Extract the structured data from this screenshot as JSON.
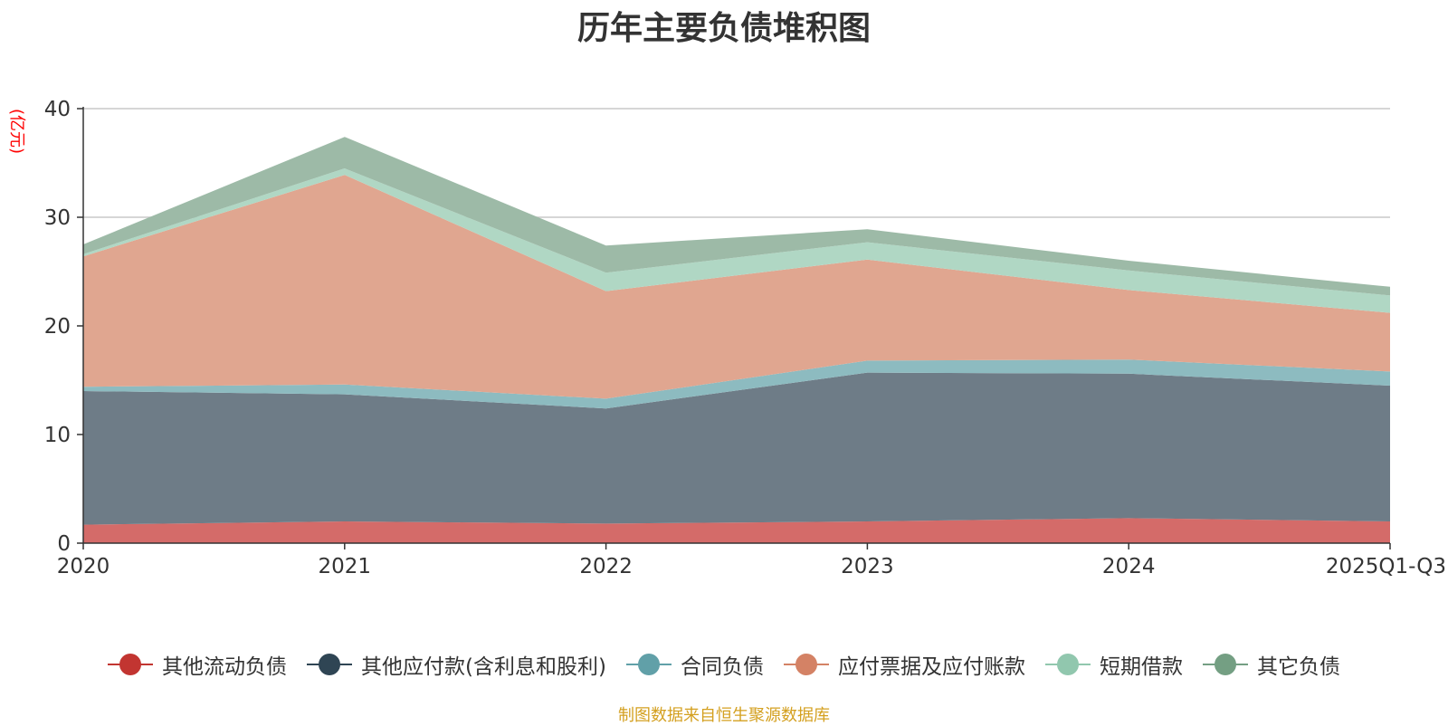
{
  "chart_data": {
    "type": "area",
    "stacked": true,
    "title": "历年主要负债堆积图",
    "unit_label": "(亿元)",
    "categories": [
      "2020",
      "2021",
      "2022",
      "2023",
      "2024",
      "2025Q1-Q3"
    ],
    "ylim": [
      0,
      40
    ],
    "yticks": [
      0,
      10,
      20,
      30,
      40
    ],
    "grid": true,
    "legend_position": "bottom",
    "source": "制图数据来自恒生聚源数据库",
    "series": [
      {
        "name": "其他流动负债",
        "color": "#c23531",
        "fill": "#d46b69",
        "values": [
          1.7,
          2.0,
          1.8,
          2.0,
          2.3,
          2.0
        ]
      },
      {
        "name": "其他应付款(含利息和股利)",
        "color": "#2f4554",
        "fill": "#6e7c87",
        "values": [
          12.3,
          11.7,
          10.6,
          13.7,
          13.3,
          12.5
        ]
      },
      {
        "name": "合同负债",
        "color": "#61a0a8",
        "fill": "#8dbbc0",
        "values": [
          0.4,
          0.9,
          0.9,
          1.1,
          1.3,
          1.3
        ]
      },
      {
        "name": "应付票据及应付账款",
        "color": "#d48265",
        "fill": "#e0a690",
        "values": [
          12.0,
          19.3,
          9.9,
          9.3,
          6.4,
          5.4
        ]
      },
      {
        "name": "短期借款",
        "color": "#91c7ae",
        "fill": "#b0d7c4",
        "values": [
          0.2,
          0.6,
          1.7,
          1.6,
          1.8,
          1.6
        ]
      },
      {
        "name": "其它负债",
        "color": "#749f83",
        "fill": "#9dbaa7",
        "values": [
          0.9,
          2.9,
          2.5,
          1.2,
          0.9,
          0.8
        ]
      }
    ]
  }
}
